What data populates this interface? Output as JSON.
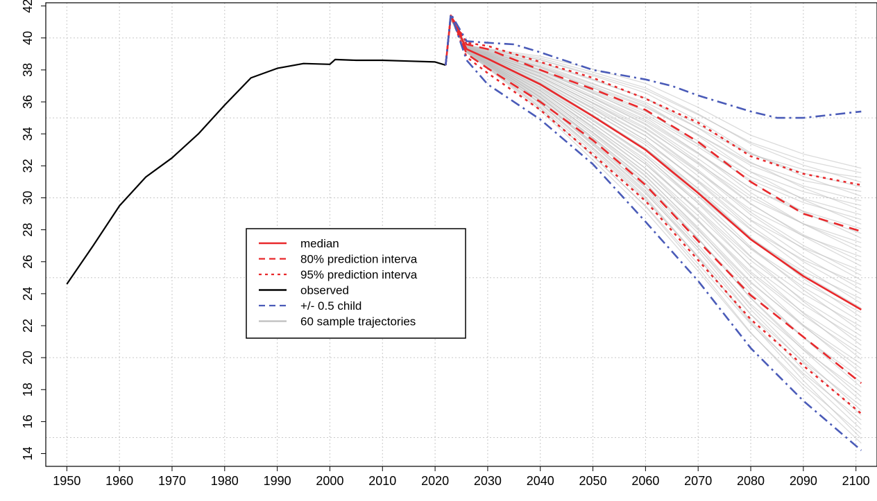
{
  "chart_data": {
    "type": "line",
    "title": "",
    "xlabel": "",
    "ylabel": "",
    "xlim": [
      1946,
      2104
    ],
    "ylim": [
      13.2,
      42.2
    ],
    "x_ticks": [
      1950,
      1960,
      1970,
      1980,
      1990,
      2000,
      2010,
      2020,
      2030,
      2040,
      2050,
      2060,
      2070,
      2080,
      2090,
      2100
    ],
    "y_ticks": [
      14,
      16,
      18,
      20,
      22,
      24,
      26,
      28,
      30,
      32,
      34,
      36,
      38,
      40,
      42
    ],
    "grid": true,
    "legend_position": "center-left",
    "colors": {
      "observed": "#000000",
      "median": "#e8282b",
      "intervals": "#e8282b",
      "child": "#4a5bb8",
      "trajectories": "#bdbdbd"
    },
    "series": [
      {
        "name": "observed",
        "style": "solid",
        "x": [
          1950,
          1955,
          1960,
          1965,
          1970,
          1975,
          1980,
          1985,
          1990,
          1995,
          2000,
          2001,
          2005,
          2010,
          2015,
          2020,
          2022
        ],
        "y": [
          24.6,
          27.0,
          29.5,
          31.3,
          32.5,
          34.0,
          35.8,
          37.5,
          38.1,
          38.4,
          38.35,
          38.65,
          38.6,
          38.6,
          38.55,
          38.5,
          38.3
        ]
      },
      {
        "name": "median",
        "style": "solid",
        "x": [
          2022,
          2023,
          2026,
          2030,
          2040,
          2050,
          2060,
          2070,
          2080,
          2090,
          2101
        ],
        "y": [
          38.3,
          41.4,
          39.3,
          38.7,
          37.1,
          35.1,
          33.0,
          30.3,
          27.4,
          25.1,
          23.0
        ]
      },
      {
        "name": "80% prediction interval",
        "style": "dashed",
        "x": [
          2022,
          2023,
          2026,
          2030,
          2040,
          2050,
          2060,
          2070,
          2080,
          2090,
          2101
        ],
        "y": [
          38.3,
          41.4,
          39.6,
          39.3,
          38.0,
          36.8,
          35.5,
          33.5,
          31.0,
          29.0,
          27.9
        ]
      },
      {
        "name": "80% prediction interval",
        "style": "dashed",
        "x": [
          2022,
          2023,
          2026,
          2030,
          2040,
          2050,
          2060,
          2070,
          2080,
          2090,
          2101
        ],
        "y": [
          38.3,
          41.4,
          39.0,
          38.1,
          36.0,
          33.6,
          30.8,
          27.3,
          23.9,
          21.3,
          18.4
        ]
      },
      {
        "name": "95% prediction interval",
        "style": "dotted",
        "x": [
          2022,
          2023,
          2026,
          2030,
          2040,
          2050,
          2060,
          2070,
          2080,
          2090,
          2101
        ],
        "y": [
          38.3,
          41.4,
          39.7,
          39.5,
          38.5,
          37.5,
          36.2,
          34.7,
          32.6,
          31.5,
          30.8
        ]
      },
      {
        "name": "95% prediction interval",
        "style": "dotted",
        "x": [
          2022,
          2023,
          2026,
          2030,
          2040,
          2050,
          2060,
          2070,
          2080,
          2090,
          2101
        ],
        "y": [
          38.3,
          41.4,
          38.8,
          37.8,
          35.5,
          32.7,
          29.8,
          26.1,
          22.4,
          19.5,
          16.5
        ]
      },
      {
        "name": "+/- 0.5 child",
        "style": "dotdash",
        "x": [
          2022,
          2023,
          2026,
          2030,
          2035,
          2040,
          2050,
          2060,
          2065,
          2070,
          2080,
          2085,
          2090,
          2101
        ],
        "y": [
          38.3,
          41.5,
          39.8,
          39.7,
          39.6,
          39.1,
          38.0,
          37.4,
          37.0,
          36.4,
          35.4,
          35.0,
          35.0,
          35.4
        ]
      },
      {
        "name": "+/- 0.5 child",
        "style": "dotdash",
        "x": [
          2022,
          2023,
          2026,
          2030,
          2040,
          2050,
          2060,
          2070,
          2080,
          2090,
          2101
        ],
        "y": [
          38.3,
          41.5,
          38.6,
          37.1,
          34.9,
          32.1,
          28.5,
          24.8,
          20.6,
          17.3,
          14.2
        ]
      }
    ],
    "sample_trajectories": {
      "name": "60 sample trajectories",
      "count": 60,
      "x": [
        2023,
        2026,
        2030,
        2040,
        2050,
        2060,
        2070,
        2080,
        2090,
        2101
      ],
      "end_range": [
        14.5,
        32.0
      ]
    },
    "legend": [
      {
        "label": "median",
        "style": "solid",
        "color": "#e8282b"
      },
      {
        "label": "80% prediction interva",
        "style": "dashed",
        "color": "#e8282b"
      },
      {
        "label": "95% prediction interva",
        "style": "dotted",
        "color": "#e8282b"
      },
      {
        "label": "observed",
        "style": "solid",
        "color": "#000000"
      },
      {
        "label": "+/- 0.5 child",
        "style": "dashed",
        "color": "#4a5bb8"
      },
      {
        "label": "60 sample trajectories",
        "style": "solid",
        "color": "#bdbdbd"
      }
    ]
  }
}
